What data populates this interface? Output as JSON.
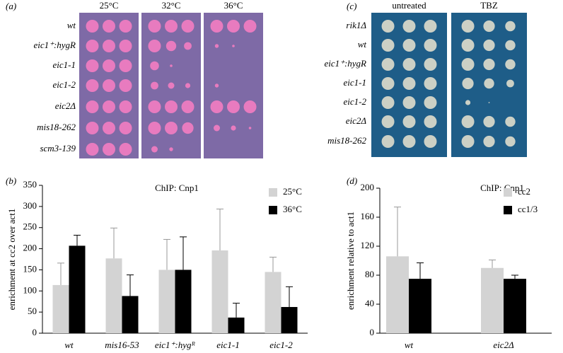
{
  "panels": {
    "a": {
      "label": "(a)",
      "columns": [
        "25°C",
        "32°C",
        "36°C"
      ],
      "rows": [
        "wt",
        "eic1⁺:hygR",
        "eic1-1",
        "eic1-2",
        "eic2Δ",
        "mis18-262",
        "scm3-139"
      ]
    },
    "c": {
      "label": "(c)",
      "columns": [
        "untreated",
        "TBZ"
      ],
      "rows": [
        "rik1Δ",
        "wt",
        "eic1⁺:hygR",
        "eic1-1",
        "eic1-2",
        "eic2Δ",
        "mis18-262"
      ]
    }
  },
  "chart_data": [
    {
      "type": "bar",
      "panel_label": "(b)",
      "title": "ChIP: Cnp1",
      "y_label": "enrichment at cc2 over act1",
      "categories": [
        "wt",
        "mis16-53",
        "eic1⁺:hygᴿ",
        "eic1-1",
        "eic1-2"
      ],
      "series": [
        {
          "name": "25°C",
          "color": "#d3d3d3",
          "values": [
            114,
            177,
            150,
            196,
            145
          ],
          "errors": [
            52,
            72,
            72,
            98,
            35
          ]
        },
        {
          "name": "36°C",
          "color": "#000000",
          "values": [
            207,
            88,
            150,
            37,
            62
          ],
          "errors": [
            25,
            50,
            78,
            34,
            48
          ]
        }
      ],
      "ylim": [
        0,
        350
      ],
      "yticks": [
        0,
        50,
        100,
        150,
        200,
        250,
        300,
        350
      ],
      "legend": "top-right"
    },
    {
      "type": "bar",
      "panel_label": "(d)",
      "title": "ChIP: Cnp1",
      "y_label": "enrichment relative to act1",
      "categories": [
        "wt",
        "eic2Δ"
      ],
      "series": [
        {
          "name": "cc2",
          "color": "#d3d3d3",
          "values": [
            106,
            90
          ],
          "errors": [
            68,
            11
          ]
        },
        {
          "name": "cc1/3",
          "color": "#000000",
          "values": [
            75,
            75
          ],
          "errors": [
            22,
            5
          ]
        }
      ],
      "ylim": [
        0,
        200
      ],
      "yticks": [
        0,
        40,
        80,
        120,
        160,
        200
      ],
      "legend": "top-right"
    }
  ]
}
